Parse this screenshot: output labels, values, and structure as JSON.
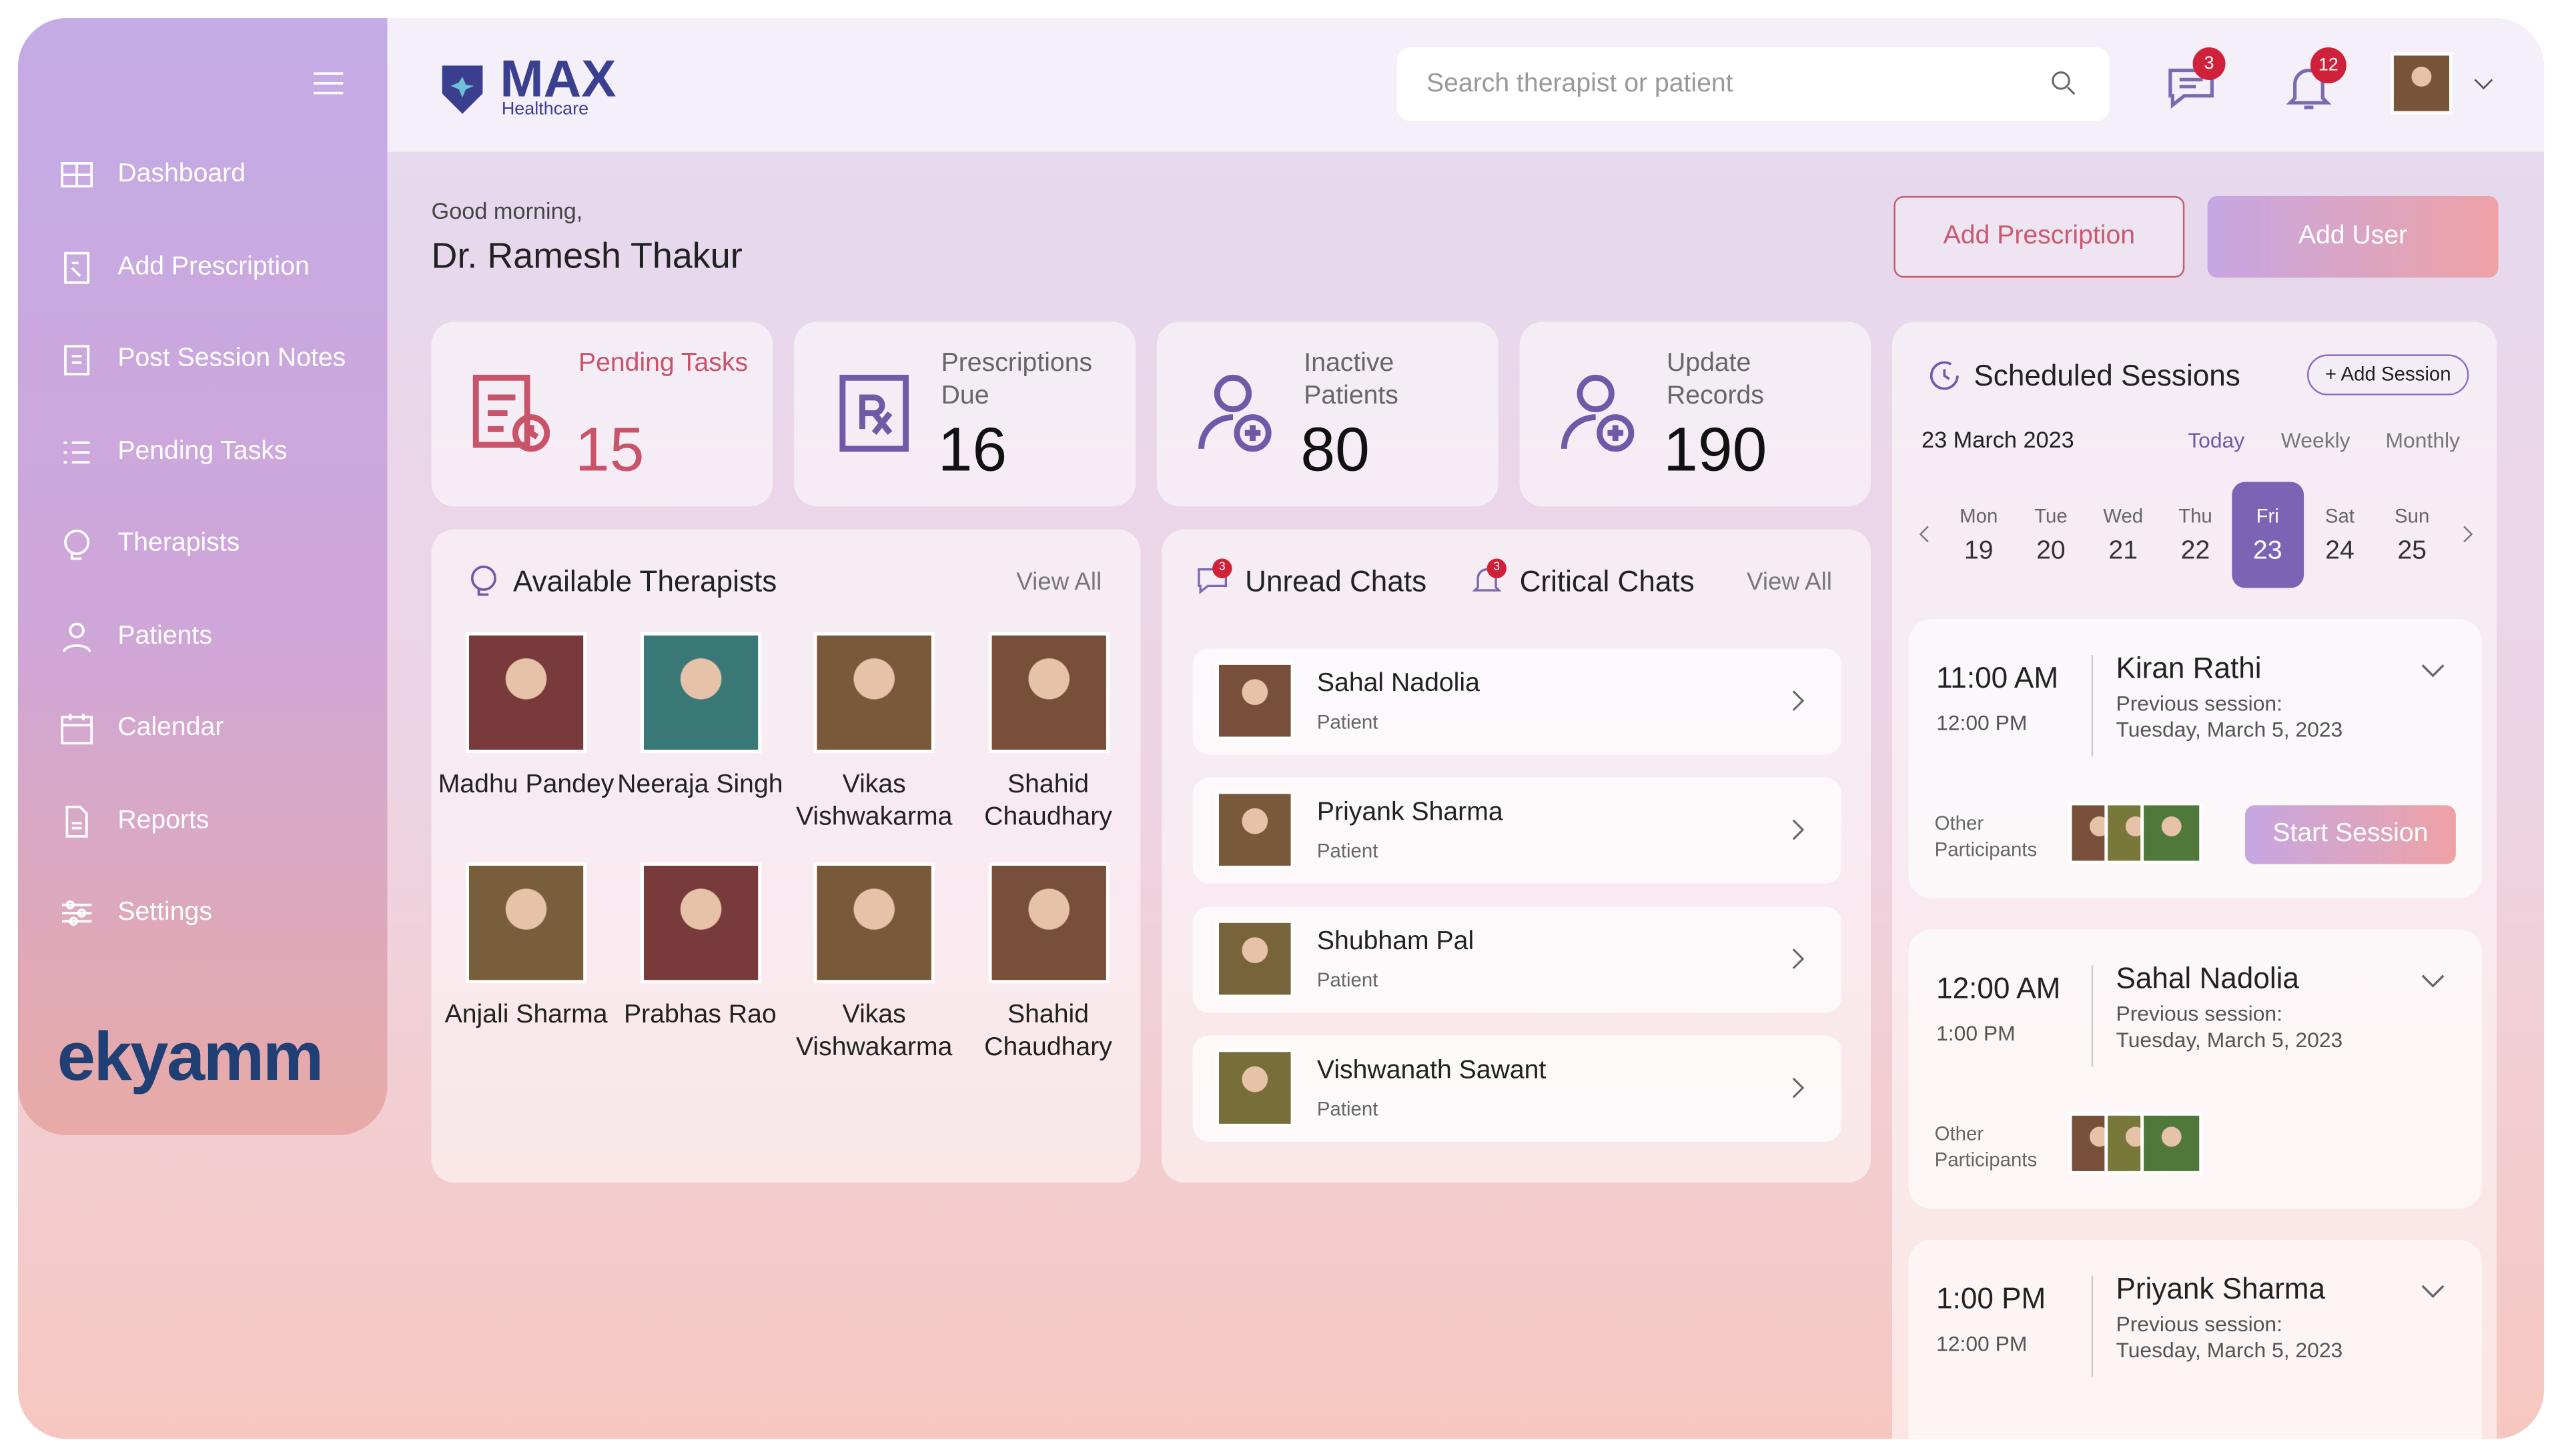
{
  "sidebar": {
    "menu": [
      "Dashboard",
      "Add Prescription",
      "Post Session Notes",
      "Pending Tasks",
      "Therapists",
      "Patients",
      "Calendar",
      "Reports",
      "Settings"
    ],
    "brand": "ekyamm"
  },
  "header": {
    "logo": "MAX",
    "logo_sub": "Healthcare",
    "search_placeholder": "Search therapist or patient",
    "chat_badge": 3,
    "notif_badge": 12
  },
  "greeting": {
    "salutation": "Good morning,",
    "name": "Dr. Ramesh Thakur"
  },
  "actions": [
    "Add Prescription",
    "Add User"
  ],
  "stats": [
    {
      "label": "Pending Tasks",
      "value": 15
    },
    {
      "label": "Prescriptions Due",
      "value": 16
    },
    {
      "label": "Inactive Patients",
      "value": 80
    },
    {
      "label": "Update Records",
      "value": 190
    }
  ],
  "therapists": {
    "title": "Available Therapists",
    "view_all": "View All",
    "list": [
      "Madhu Pandey",
      "Neeraja Singh",
      "Vikas Vishwakarma",
      "Shahid Chaudhary",
      "Anjali Sharma",
      "Prabhas Rao",
      "Vikas Vishwakarma",
      "Shahid Chaudhary"
    ]
  },
  "chats": {
    "tabs": [
      {
        "label": "Unread Chats",
        "badge": 3
      },
      {
        "label": "Critical Chats",
        "badge": 3
      }
    ],
    "view_all": "View All",
    "list": [
      {
        "name": "Sahal Nadolia",
        "role": "Patient"
      },
      {
        "name": "Priyank Sharma",
        "role": "Patient"
      },
      {
        "name": "Shubham Pal",
        "role": "Patient"
      },
      {
        "name": "Vishwanath Sawant",
        "role": "Patient"
      }
    ]
  },
  "sessions": {
    "title": "Scheduled Sessions",
    "add": "+ Add Session",
    "date": "23 March 2023",
    "views": [
      "Today",
      "Weekly",
      "Monthly"
    ],
    "days": [
      {
        "day": "Mon",
        "date": 19
      },
      {
        "day": "Tue",
        "date": 20
      },
      {
        "day": "Wed",
        "date": 21
      },
      {
        "day": "Thu",
        "date": 22
      },
      {
        "day": "Fri",
        "date": 23
      },
      {
        "day": "Sat",
        "date": 24
      },
      {
        "day": "Sun",
        "date": 25
      }
    ],
    "items": [
      {
        "start": "11:00 AM",
        "end": "12:00 PM",
        "name": "Kiran Rathi",
        "prev_label": "Previous session:",
        "prev_date": "Tuesday, March 5, 2023",
        "participants_label": "Other Participants",
        "action": "Start Session"
      },
      {
        "start": "12:00 AM",
        "end": "1:00 PM",
        "name": "Sahal Nadolia",
        "prev_label": "Previous session:",
        "prev_date": "Tuesday, March 5, 2023",
        "participants_label": "Other Participants"
      },
      {
        "start": "1:00 PM",
        "end": "12:00 PM",
        "name": "Priyank Sharma",
        "prev_label": "Previous session:",
        "prev_date": "Tuesday, March 5, 2023"
      }
    ]
  }
}
